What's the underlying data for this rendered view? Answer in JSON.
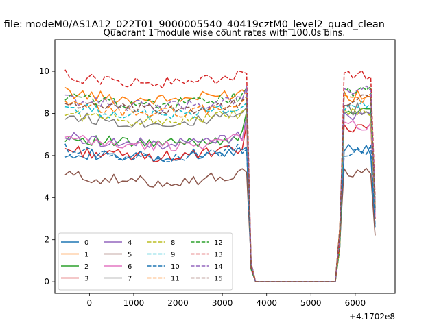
{
  "suptitle": "n file: modeM0/AS1A12_022T01_9000005540_40419cztM0_level2_quad_clean",
  "chart_data": {
    "type": "line",
    "title": "Quadrant 1 module wise count rates with 100.0s bins.",
    "xlabel": "",
    "ylabel": "",
    "x_offset_label": "+4.1702e8",
    "xlim": [
      -780,
      6900
    ],
    "ylim": [
      -0.55,
      11.5
    ],
    "xticks": [
      0,
      1000,
      2000,
      3000,
      4000,
      5000,
      6000
    ],
    "yticks": [
      0,
      2,
      4,
      6,
      8,
      10
    ],
    "legend": {
      "location": "lower-left",
      "columns": 4
    },
    "grid": false,
    "segments": [
      {
        "x_start": -550,
        "x_end": 3550,
        "step": 100
      },
      {
        "x_start": 3650,
        "x_end": 3750,
        "step": 100
      },
      {
        "x_start": 3850,
        "x_end": 5550,
        "step": 100
      },
      {
        "x_start": 5650,
        "x_end": 6450,
        "step": 100
      }
    ],
    "series": [
      {
        "name": "0",
        "color": "#1f77b4",
        "dash": "solid",
        "base": 6.2,
        "gap_level": 6.1,
        "drop_end": 2.6
      },
      {
        "name": "1",
        "color": "#ff7f0e",
        "dash": "solid",
        "base": 9.0,
        "gap_level": 8.6,
        "drop_end": 3.6
      },
      {
        "name": "2",
        "color": "#2ca02c",
        "dash": "solid",
        "base": 6.9,
        "gap_level": 7.8,
        "drop_end": 3.3
      },
      {
        "name": "3",
        "color": "#d62728",
        "dash": "solid",
        "base": 6.3,
        "gap_level": 7.2,
        "drop_end": 3.0
      },
      {
        "name": "4",
        "color": "#9467bd",
        "dash": "solid",
        "base": 6.9,
        "gap_level": 7.6,
        "drop_end": 3.2
      },
      {
        "name": "5",
        "color": "#8c564b",
        "dash": "solid",
        "base": 5.1,
        "gap_level": 4.9,
        "drop_end": 2.2
      },
      {
        "name": "6",
        "color": "#e377c2",
        "dash": "solid",
        "base": 6.8,
        "gap_level": 7.3,
        "drop_end": 3.1
      },
      {
        "name": "7",
        "color": "#7f7f7f",
        "dash": "solid",
        "base": 7.9,
        "gap_level": 8.0,
        "drop_end": 3.4
      },
      {
        "name": "8",
        "color": "#bcbd22",
        "dash": "dashed",
        "base": 8.0,
        "gap_level": 7.9,
        "drop_end": 3.4
      },
      {
        "name": "9",
        "color": "#17becf",
        "dash": "dashed",
        "base": 8.3,
        "gap_level": 8.2,
        "drop_end": 3.5
      },
      {
        "name": "10",
        "color": "#1f77b4",
        "dash": "dashed",
        "base": 6.3,
        "gap_level": 6.0,
        "drop_end": 2.7
      },
      {
        "name": "11",
        "color": "#ff7f0e",
        "dash": "dashed",
        "base": 8.4,
        "gap_level": 8.5,
        "drop_end": 3.6
      },
      {
        "name": "12",
        "color": "#2ca02c",
        "dash": "dashed",
        "base": 8.8,
        "gap_level": 8.9,
        "drop_end": 3.8
      },
      {
        "name": "13",
        "color": "#d62728",
        "dash": "dashed",
        "base": 9.8,
        "gap_level": 9.6,
        "drop_end": 4.0
      },
      {
        "name": "14",
        "color": "#9467bd",
        "dash": "dashed",
        "base": 8.7,
        "gap_level": 9.0,
        "drop_end": 3.8
      },
      {
        "name": "15",
        "color": "#8c564b",
        "dash": "dashed",
        "base": 8.5,
        "gap_level": 8.4,
        "drop_end": 3.5
      }
    ]
  }
}
